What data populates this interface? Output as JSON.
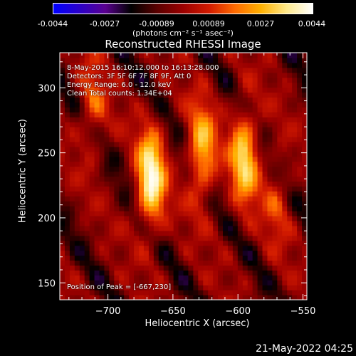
{
  "colorbar": {
    "ticks": [
      "-0.0044",
      "-0.0027",
      "-0.00089",
      "0.00089",
      "0.0027",
      "0.0044"
    ],
    "units": "(photons cm⁻² s⁻¹ asec⁻²)",
    "colors": [
      "#0000ff",
      "#2a00c8",
      "#5a0090",
      "#000000",
      "#5a0000",
      "#9b0000",
      "#d21a00",
      "#ff6a00",
      "#ffb000",
      "#ffe98a",
      "#ffffff"
    ]
  },
  "chart_data": {
    "type": "heatmap",
    "title": "Reconstructed RHESSI Image",
    "xlabel": "Heliocentric X (arcsec)",
    "ylabel": "Heliocentric Y (arcsec)",
    "xlim": [
      -737,
      -547
    ],
    "ylim": [
      137,
      327
    ],
    "xticks": [
      -700,
      -650,
      -600,
      -550
    ],
    "yticks": [
      150,
      200,
      250,
      300
    ],
    "vlim": [
      -0.0044,
      0.0044
    ],
    "sources": [
      {
        "x": -667,
        "y": 230,
        "peak": 0.0044
      },
      {
        "x": -628,
        "y": 250,
        "peak": 0.0033
      },
      {
        "x": -595,
        "y": 248,
        "peak": 0.0036
      },
      {
        "x": -712,
        "y": 285,
        "peak": 0.0018
      },
      {
        "x": -570,
        "y": 215,
        "peak": 0.0014
      }
    ],
    "annotations": {
      "date": "8-May-2015 16:10:12.000 to 16:13:28.000",
      "detectors": "Detectors: 3F 5F 6F 7F 8F 9F, Att 0",
      "energy": "Energy Range: 6.0 - 12.0 keV",
      "clean": "Clean     Total counts: 1.34E+04",
      "peak": "Position of Peak = [-667,230]"
    }
  },
  "footer": {
    "timestamp": "21-May-2022 04:25"
  }
}
